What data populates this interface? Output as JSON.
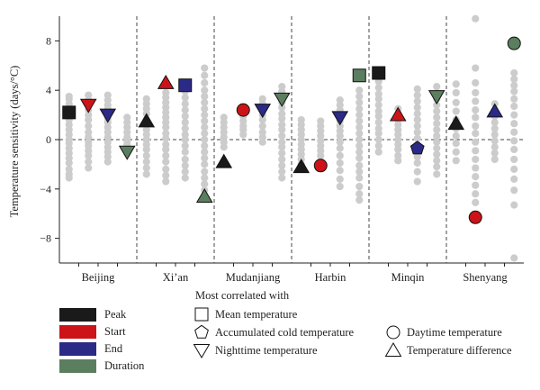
{
  "chart_data": {
    "type": "scatter",
    "ylabel": "Temperature sensitivity (days/°C)",
    "ylim": [
      -10,
      10
    ],
    "yticks": [
      -8,
      -4,
      0,
      4,
      8
    ],
    "grid": false,
    "categories": [
      "Beijing",
      "Xi’an",
      "Mudanjiang",
      "Harbin",
      "Minqin",
      "Shenyang"
    ],
    "series_names": [
      "Peak",
      "Start",
      "End",
      "Duration"
    ],
    "series_colors": {
      "Peak": "#1a1a1a",
      "Start": "#cc1418",
      "End": "#2b2a87",
      "Duration": "#5b7e5f"
    },
    "background_points": [
      [
        3.5,
        3.3,
        2.9,
        2.5,
        2.1,
        1.6,
        1.2,
        0.8,
        0.4,
        0.0,
        -0.3,
        -0.7,
        -1.1,
        -1.5,
        -1.9,
        -2.4,
        -2.8,
        -3.1
      ],
      [
        3.6,
        3.2,
        2.8,
        2.4,
        2.0,
        1.6,
        1.1,
        0.6,
        0.2,
        -0.2,
        -0.5,
        -0.9,
        -1.3,
        -1.8,
        -2.3
      ],
      [
        3.6,
        3.2,
        2.8,
        2.5,
        2.1,
        1.7,
        1.4,
        1.0,
        0.6,
        0.2,
        -0.2,
        -0.6,
        -1.0,
        -1.4,
        -1.8
      ],
      [
        1.8,
        1.4,
        1.0,
        0.6,
        0.2,
        -0.1,
        -0.4,
        -0.7,
        -1.1
      ],
      [
        3.3,
        2.9,
        2.5,
        2.1,
        1.6,
        1.2,
        0.8,
        0.4,
        0.0,
        -0.4,
        -0.8,
        -1.3,
        -1.8,
        -2.3,
        -2.8
      ],
      [
        3.8,
        3.4,
        3.0,
        2.6,
        2.2,
        1.8,
        1.4,
        1.0,
        0.5,
        0.1,
        -0.4,
        -0.8,
        -1.3,
        -1.8,
        -2.4,
        -2.9,
        -3.4
      ],
      [
        4.4,
        3.9,
        3.4,
        2.9,
        2.4,
        1.9,
        1.4,
        0.9,
        0.4,
        0.0,
        -0.5,
        -1.0,
        -1.6,
        -2.1,
        -2.6,
        -3.1
      ],
      [
        5.8,
        5.2,
        4.6,
        4.0,
        3.5,
        3.0,
        2.5,
        2.0,
        1.5,
        1.0,
        0.5,
        0.0,
        -0.5,
        -1.0,
        -1.5,
        -2.0,
        -2.6,
        -3.1,
        -3.6,
        -4.1
      ],
      [
        1.8,
        1.4,
        1.0,
        0.6,
        0.2,
        -0.2,
        -0.6
      ],
      [
        2.3,
        1.9,
        1.5,
        1.1,
        0.8,
        0.4
      ],
      [
        3.3,
        2.9,
        2.4,
        2.0,
        1.6,
        1.1,
        0.6,
        0.2,
        -0.2
      ],
      [
        4.3,
        3.9,
        3.5,
        3.0,
        2.6,
        2.1,
        1.7,
        1.2,
        0.8,
        0.3,
        -0.2,
        -0.6,
        -1.1,
        -1.6,
        -2.1,
        -2.6,
        -3.1
      ],
      [
        1.6,
        1.2,
        0.8,
        0.4,
        0.0,
        -0.4,
        -0.8,
        -1.2,
        -1.6,
        -2.0
      ],
      [
        1.5,
        1.1,
        0.7,
        0.3,
        -0.1,
        -0.5,
        -0.9,
        -1.3,
        -1.8
      ],
      [
        3.2,
        2.8,
        2.4,
        1.9,
        1.5,
        1.1,
        0.7,
        0.3,
        -0.2,
        -0.7,
        -1.3,
        -1.9,
        -2.5,
        -3.2,
        -3.8
      ],
      [
        4.0,
        3.5,
        3.0,
        2.5,
        2.0,
        1.5,
        1.0,
        0.5,
        0.0,
        -0.5,
        -1.0,
        -1.5,
        -2.1,
        -2.6,
        -3.1,
        -3.8,
        -4.4,
        -4.9
      ],
      [
        4.7,
        4.2,
        3.7,
        3.3,
        2.8,
        2.3,
        1.9,
        1.4,
        0.9,
        0.5,
        0.0,
        -0.5,
        -1.0
      ],
      [
        2.5,
        2.1,
        1.6,
        1.2,
        0.8,
        0.4,
        0.0,
        -0.4,
        -0.8,
        -1.3,
        -1.7
      ],
      [
        4.1,
        3.6,
        3.1,
        2.6,
        2.1,
        1.6,
        1.1,
        0.6,
        0.1,
        -0.4,
        -0.9,
        -1.4,
        -1.9,
        -2.6,
        -3.4
      ],
      [
        4.3,
        3.8,
        3.3,
        2.8,
        2.3,
        1.8,
        1.3,
        0.8,
        0.3,
        -0.2,
        -0.7,
        -1.2,
        -1.7,
        -2.2,
        -2.8
      ],
      [
        4.5,
        3.8,
        3.0,
        2.3,
        1.6,
        0.9,
        0.3,
        -0.3,
        -1.0,
        -1.7
      ],
      [
        9.8,
        5.8,
        4.6,
        3.8,
        3.1,
        2.4,
        1.8,
        1.1,
        0.5,
        -0.2,
        -0.9,
        -1.6,
        -2.3,
        -3.0,
        -3.7,
        -4.4,
        -5.1
      ],
      [
        2.9,
        2.4,
        1.9,
        1.4,
        0.9,
        0.4,
        -0.1,
        -0.6,
        -1.1,
        -1.6
      ],
      [
        5.4,
        4.9,
        4.4,
        3.9,
        3.3,
        2.7,
        2.0,
        1.3,
        0.6,
        -0.1,
        -0.8,
        -1.6,
        -2.4,
        -3.2,
        -4.1,
        -5.3,
        -9.6
      ]
    ],
    "highlighted_points": [
      {
        "series": "Peak",
        "category": "Beijing",
        "y": 2.2,
        "shape": "square"
      },
      {
        "series": "Start",
        "category": "Beijing",
        "y": 2.8,
        "shape": "triangle-down"
      },
      {
        "series": "End",
        "category": "Beijing",
        "y": 2.0,
        "shape": "triangle-down"
      },
      {
        "series": "Duration",
        "category": "Beijing",
        "y": -1.0,
        "shape": "triangle-down"
      },
      {
        "series": "Peak",
        "category": "Xi’an",
        "y": 1.5,
        "shape": "triangle-up"
      },
      {
        "series": "Start",
        "category": "Xi’an",
        "y": 4.6,
        "shape": "triangle-up"
      },
      {
        "series": "End",
        "category": "Xi’an",
        "y": 4.4,
        "shape": "square"
      },
      {
        "series": "Duration",
        "category": "Xi’an",
        "y": -4.6,
        "shape": "triangle-up"
      },
      {
        "series": "Peak",
        "category": "Mudanjiang",
        "y": -1.8,
        "shape": "triangle-up"
      },
      {
        "series": "Start",
        "category": "Mudanjiang",
        "y": 2.4,
        "shape": "circle"
      },
      {
        "series": "End",
        "category": "Mudanjiang",
        "y": 2.4,
        "shape": "triangle-down"
      },
      {
        "series": "Duration",
        "category": "Mudanjiang",
        "y": 3.3,
        "shape": "triangle-down"
      },
      {
        "series": "Peak",
        "category": "Harbin",
        "y": -2.2,
        "shape": "triangle-up"
      },
      {
        "series": "Start",
        "category": "Harbin",
        "y": -2.1,
        "shape": "circle"
      },
      {
        "series": "End",
        "category": "Harbin",
        "y": 1.8,
        "shape": "triangle-down"
      },
      {
        "series": "Duration",
        "category": "Harbin",
        "y": 5.2,
        "shape": "square"
      },
      {
        "series": "Peak",
        "category": "Minqin",
        "y": 5.4,
        "shape": "square"
      },
      {
        "series": "Start",
        "category": "Minqin",
        "y": 2.0,
        "shape": "triangle-up"
      },
      {
        "series": "End",
        "category": "Minqin",
        "y": -0.7,
        "shape": "pentagon"
      },
      {
        "series": "Duration",
        "category": "Minqin",
        "y": 3.5,
        "shape": "triangle-down"
      },
      {
        "series": "Peak",
        "category": "Shenyang",
        "y": 1.3,
        "shape": "triangle-up"
      },
      {
        "series": "Start",
        "category": "Shenyang",
        "y": -6.3,
        "shape": "circle"
      },
      {
        "series": "End",
        "category": "Shenyang",
        "y": 2.3,
        "shape": "triangle-up"
      },
      {
        "series": "Duration",
        "category": "Shenyang",
        "y": 7.8,
        "shape": "circle"
      }
    ]
  },
  "legend": {
    "series_title": "",
    "shapes_title": "Most correlated with",
    "series": [
      {
        "label": "Peak",
        "color": "#1a1a1a"
      },
      {
        "label": "Start",
        "color": "#cc1418"
      },
      {
        "label": "End",
        "color": "#2b2a87"
      },
      {
        "label": "Duration",
        "color": "#5b7e5f"
      }
    ],
    "shapes": [
      {
        "label": "Mean temperature",
        "shape": "square"
      },
      {
        "label": "Accumulated cold temperature",
        "shape": "pentagon"
      },
      {
        "label": "Nighttime temperature",
        "shape": "triangle-down"
      },
      {
        "label": "Daytime temperature",
        "shape": "circle"
      },
      {
        "label": "Temperature difference",
        "shape": "triangle-up"
      }
    ]
  },
  "colors": {
    "background_point": "#cccccc",
    "axis": "#222222",
    "divider": "#444444"
  }
}
